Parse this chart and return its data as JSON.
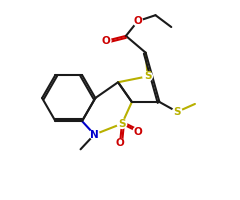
{
  "bg": "#ffffff",
  "bc": "#1a1a1a",
  "sc": "#b8b000",
  "nc": "#0000cc",
  "oc": "#cc0000",
  "lw": 1.5,
  "doff": 0.02,
  "figw": 2.4,
  "figh": 2.0,
  "dpi": 100,
  "xlim": [
    0,
    2.4
  ],
  "ylim": [
    0,
    2.0
  ]
}
